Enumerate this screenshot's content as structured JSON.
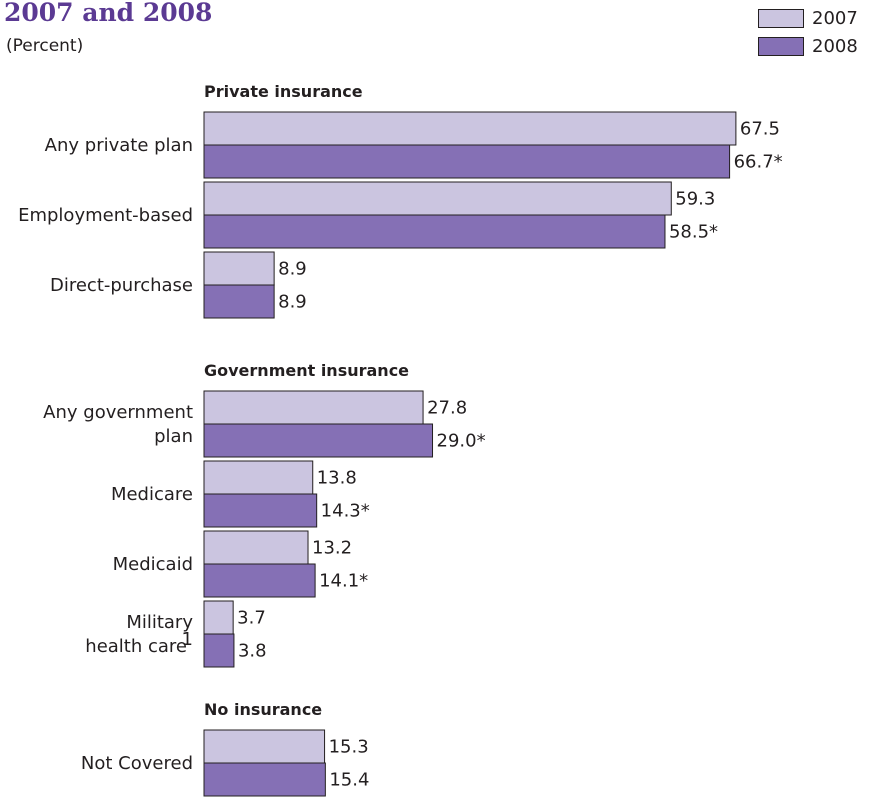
{
  "title": "2007 and 2008",
  "subtitle": "(Percent)",
  "legend": {
    "items": [
      {
        "label": "2007",
        "color": "#cbc5e0"
      },
      {
        "label": "2008",
        "color": "#8570b5"
      }
    ]
  },
  "chart_data": {
    "type": "bar",
    "orientation": "horizontal",
    "title": "2007 and 2008",
    "subtitle": "(Percent)",
    "xlim": [
      0,
      70
    ],
    "grid": false,
    "legend_position": "top-right",
    "series": [
      {
        "name": "2007",
        "color": "#cbc5e0"
      },
      {
        "name": "2008",
        "color": "#8570b5"
      }
    ],
    "groups": [
      {
        "heading": "Private insurance",
        "categories": [
          {
            "label": [
              "Any private plan"
            ],
            "values": [
              67.5,
              66.7
            ],
            "display": [
              "67.5",
              "66.7*"
            ]
          },
          {
            "label": [
              "Employment-based"
            ],
            "values": [
              59.3,
              58.5
            ],
            "display": [
              "59.3",
              "58.5*"
            ]
          },
          {
            "label": [
              "Direct-purchase"
            ],
            "values": [
              8.9,
              8.9
            ],
            "display": [
              "8.9",
              "8.9"
            ]
          }
        ]
      },
      {
        "heading": "Government insurance",
        "categories": [
          {
            "label": [
              "Any government",
              "plan"
            ],
            "values": [
              27.8,
              29.0
            ],
            "display": [
              "27.8",
              "29.0*"
            ]
          },
          {
            "label": [
              "Medicare"
            ],
            "values": [
              13.8,
              14.3
            ],
            "display": [
              "13.8",
              "14.3*"
            ]
          },
          {
            "label": [
              "Medicaid"
            ],
            "values": [
              13.2,
              14.1
            ],
            "display": [
              "13.2",
              "14.1*"
            ]
          },
          {
            "label": [
              "Military",
              "health care"
            ],
            "footnote": "1",
            "values": [
              3.7,
              3.8
            ],
            "display": [
              "3.7",
              "3.8"
            ]
          }
        ]
      },
      {
        "heading": "No insurance",
        "categories": [
          {
            "label": [
              "Not Covered"
            ],
            "values": [
              15.3,
              15.4
            ],
            "display": [
              "15.3",
              "15.4"
            ]
          }
        ]
      }
    ]
  }
}
